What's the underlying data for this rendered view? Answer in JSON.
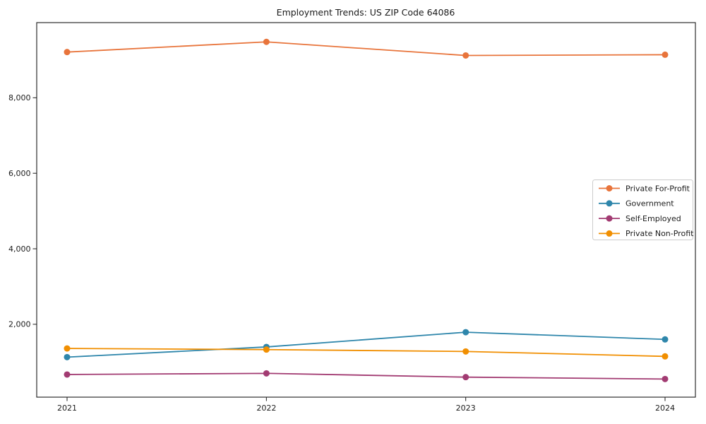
{
  "chart_data": {
    "type": "line",
    "title": "Employment Trends: US ZIP Code 64086",
    "xlabel": "",
    "ylabel": "",
    "x": [
      2021,
      2022,
      2023,
      2024
    ],
    "xtick_labels": [
      "2021",
      "2022",
      "2023",
      "2024"
    ],
    "yticks": [
      2000,
      4000,
      6000,
      8000
    ],
    "ytick_labels": [
      "2,000",
      "4,000",
      "6,000",
      "8,000"
    ],
    "ylim": [
      70,
      9990
    ],
    "grid": false,
    "marker": "circle",
    "legend_position": "center right",
    "background_color": "#ffffff",
    "spine_color": "#1a1a1a",
    "legend_border_color": "#cccccc",
    "series": [
      {
        "name": "Private For-Profit",
        "color": "#E8743B",
        "values": [
          9210,
          9480,
          9120,
          9140
        ]
      },
      {
        "name": "Government",
        "color": "#2E86AB",
        "values": [
          1130,
          1400,
          1790,
          1600
        ]
      },
      {
        "name": "Self-Employed",
        "color": "#A23B72",
        "values": [
          670,
          700,
          600,
          550
        ]
      },
      {
        "name": "Private Non-Profit",
        "color": "#F18F01",
        "values": [
          1360,
          1330,
          1280,
          1150
        ]
      }
    ]
  }
}
